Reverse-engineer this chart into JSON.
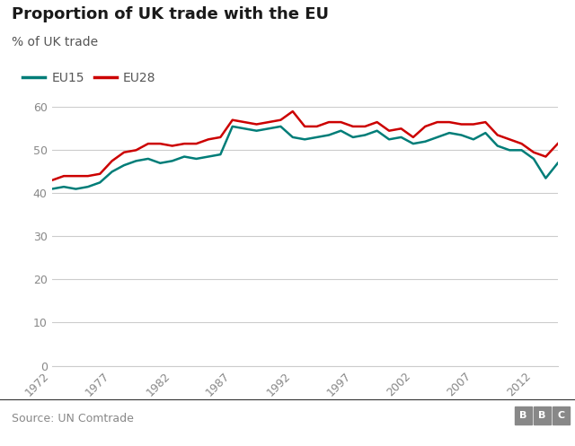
{
  "title": "Proportion of UK trade with the EU",
  "subtitle": "% of UK trade",
  "source": "Source: UN Comtrade",
  "eu15_color": "#007d78",
  "eu28_color": "#cc0000",
  "background_color": "#ffffff",
  "ylim": [
    0,
    60
  ],
  "yticks": [
    0,
    10,
    20,
    30,
    40,
    50,
    60
  ],
  "years": [
    1972,
    1973,
    1974,
    1975,
    1976,
    1977,
    1978,
    1979,
    1980,
    1981,
    1982,
    1983,
    1984,
    1985,
    1986,
    1987,
    1988,
    1989,
    1990,
    1991,
    1992,
    1993,
    1994,
    1995,
    1996,
    1997,
    1998,
    1999,
    2000,
    2001,
    2002,
    2003,
    2004,
    2005,
    2006,
    2007,
    2008,
    2009,
    2010,
    2011,
    2012,
    2013,
    2014
  ],
  "eu15": [
    41.0,
    41.5,
    41.0,
    41.5,
    42.5,
    45.0,
    46.5,
    47.5,
    48.0,
    47.0,
    47.5,
    48.5,
    48.0,
    48.5,
    49.0,
    55.5,
    55.0,
    54.5,
    55.0,
    55.5,
    53.0,
    52.5,
    53.0,
    53.5,
    54.5,
    53.0,
    53.5,
    54.5,
    52.5,
    53.0,
    51.5,
    52.0,
    53.0,
    54.0,
    53.5,
    52.5,
    54.0,
    51.0,
    50.0,
    50.0,
    48.0,
    43.5,
    47.0
  ],
  "eu28": [
    43.0,
    44.0,
    44.0,
    44.0,
    44.5,
    47.5,
    49.5,
    50.0,
    51.5,
    51.5,
    51.0,
    51.5,
    51.5,
    52.5,
    53.0,
    57.0,
    56.5,
    56.0,
    56.5,
    57.0,
    59.0,
    55.5,
    55.5,
    56.5,
    56.5,
    55.5,
    55.5,
    56.5,
    54.5,
    55.0,
    53.0,
    55.5,
    56.5,
    56.5,
    56.0,
    56.0,
    56.5,
    53.5,
    52.5,
    51.5,
    49.5,
    48.5,
    51.5
  ],
  "xticks": [
    1972,
    1977,
    1982,
    1987,
    1992,
    1997,
    2002,
    2007,
    2012
  ],
  "grid_color": "#cccccc",
  "tick_color": "#888888",
  "label_color": "#555555",
  "title_fontsize": 13,
  "subtitle_fontsize": 10,
  "legend_fontsize": 10,
  "tick_fontsize": 9,
  "source_fontsize": 9
}
